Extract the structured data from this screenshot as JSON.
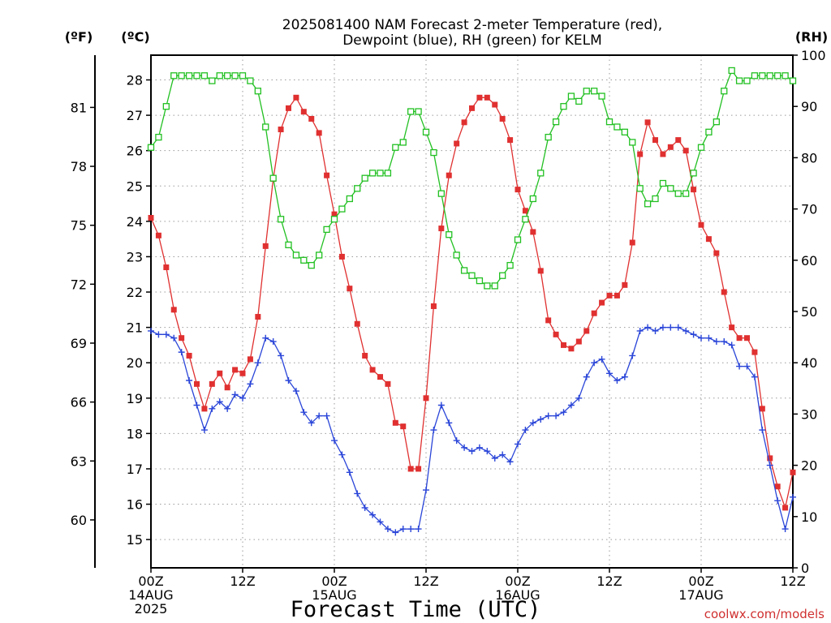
{
  "chart_data": {
    "type": "line",
    "title_line1": "2025081400 NAM Forecast 2-meter Temperature (red),",
    "title_line2": "Dewpoint (blue), RH (green) for KELM",
    "xlabel": "Forecast Time (UTC)",
    "credit": "coolwx.com/models",
    "units": {
      "fahrenheit": "(ºF)",
      "celsius": "(ºC)",
      "rh": "(RH)"
    },
    "x_ticks": [
      {
        "h": 0,
        "lines": [
          "00Z",
          "14AUG",
          "2025"
        ]
      },
      {
        "h": 12,
        "lines": [
          "12Z"
        ]
      },
      {
        "h": 24,
        "lines": [
          "00Z",
          "15AUG"
        ]
      },
      {
        "h": 36,
        "lines": [
          "12Z"
        ]
      },
      {
        "h": 48,
        "lines": [
          "00Z",
          "16AUG"
        ]
      },
      {
        "h": 60,
        "lines": [
          "12Z"
        ]
      },
      {
        "h": 72,
        "lines": [
          "00Z",
          "17AUG"
        ]
      },
      {
        "h": 84,
        "lines": [
          "12Z"
        ]
      }
    ],
    "xlim_hours": [
      0,
      84
    ],
    "celsius_ticks": [
      15,
      16,
      17,
      18,
      19,
      20,
      21,
      22,
      23,
      24,
      25,
      26,
      27,
      28
    ],
    "celsius_range": [
      14.2,
      28.7
    ],
    "fahrenheit_ticks": [
      60,
      63,
      66,
      69,
      72,
      75,
      78,
      81
    ],
    "rh_ticks": [
      0,
      10,
      20,
      30,
      40,
      50,
      60,
      70,
      80,
      90,
      100
    ],
    "rh_range": [
      0,
      100
    ],
    "grid": true,
    "series": [
      {
        "name": "Temperature",
        "color": "#e03030",
        "marker": "filled-square",
        "unit": "C",
        "values": [
          24.1,
          23.6,
          22.7,
          21.5,
          20.7,
          20.2,
          19.4,
          18.7,
          19.4,
          19.7,
          19.3,
          19.8,
          19.7,
          20.1,
          21.3,
          23.3,
          25.2,
          26.6,
          27.2,
          27.5,
          27.1,
          26.9,
          26.5,
          25.3,
          24.2,
          23.0,
          22.1,
          21.1,
          20.2,
          19.8,
          19.6,
          19.4,
          18.3,
          18.2,
          17.0,
          17.0,
          19.0,
          21.6,
          23.8,
          25.3,
          26.2,
          26.8,
          27.2,
          27.5,
          27.5,
          27.3,
          26.9,
          26.3,
          24.9,
          24.3,
          23.7,
          22.6,
          21.2,
          20.8,
          20.5,
          20.4,
          20.6,
          20.9,
          21.4,
          21.7,
          21.9,
          21.9,
          22.2,
          23.4,
          25.9,
          26.8,
          26.3,
          25.9,
          26.1,
          26.3,
          26.0,
          24.9,
          23.9,
          23.5,
          23.1,
          22.0,
          21.0,
          20.7,
          20.7,
          20.3,
          18.7,
          17.3,
          16.5,
          15.9,
          16.9
        ]
      },
      {
        "name": "Dewpoint",
        "color": "#2a45d8",
        "marker": "plus",
        "unit": "C",
        "values": [
          20.9,
          20.8,
          20.8,
          20.7,
          20.3,
          19.5,
          18.8,
          18.1,
          18.7,
          18.9,
          18.7,
          19.1,
          19.0,
          19.4,
          20.0,
          20.7,
          20.6,
          20.2,
          19.5,
          19.2,
          18.6,
          18.3,
          18.5,
          18.5,
          17.8,
          17.4,
          16.9,
          16.3,
          15.9,
          15.7,
          15.5,
          15.3,
          15.2,
          15.3,
          15.3,
          15.3,
          16.4,
          18.1,
          18.8,
          18.3,
          17.8,
          17.6,
          17.5,
          17.6,
          17.5,
          17.3,
          17.4,
          17.2,
          17.7,
          18.1,
          18.3,
          18.4,
          18.5,
          18.5,
          18.6,
          18.8,
          19.0,
          19.6,
          20.0,
          20.1,
          19.7,
          19.5,
          19.6,
          20.2,
          20.9,
          21.0,
          20.9,
          21.0,
          21.0,
          21.0,
          20.9,
          20.8,
          20.7,
          20.7,
          20.6,
          20.6,
          20.5,
          19.9,
          19.9,
          19.6,
          18.1,
          17.1,
          16.1,
          15.3,
          16.2
        ]
      },
      {
        "name": "RH",
        "color": "#22c022",
        "marker": "open-square",
        "unit": "RH",
        "values": [
          82,
          84,
          90,
          96,
          96,
          96,
          96,
          96,
          95,
          96,
          96,
          96,
          96,
          95,
          93,
          86,
          76,
          68,
          63,
          61,
          60,
          59,
          61,
          66,
          68,
          70,
          72,
          74,
          76,
          77,
          77,
          77,
          82,
          83,
          89,
          89,
          85,
          81,
          73,
          65,
          61,
          58,
          57,
          56,
          55,
          55,
          57,
          59,
          64,
          68,
          72,
          77,
          84,
          87,
          90,
          92,
          91,
          93,
          93,
          92,
          87,
          86,
          85,
          83,
          74,
          71,
          72,
          75,
          74,
          73,
          73,
          77,
          82,
          85,
          87,
          93,
          97,
          95,
          95,
          96,
          96,
          96,
          96,
          96,
          95
        ]
      }
    ]
  }
}
